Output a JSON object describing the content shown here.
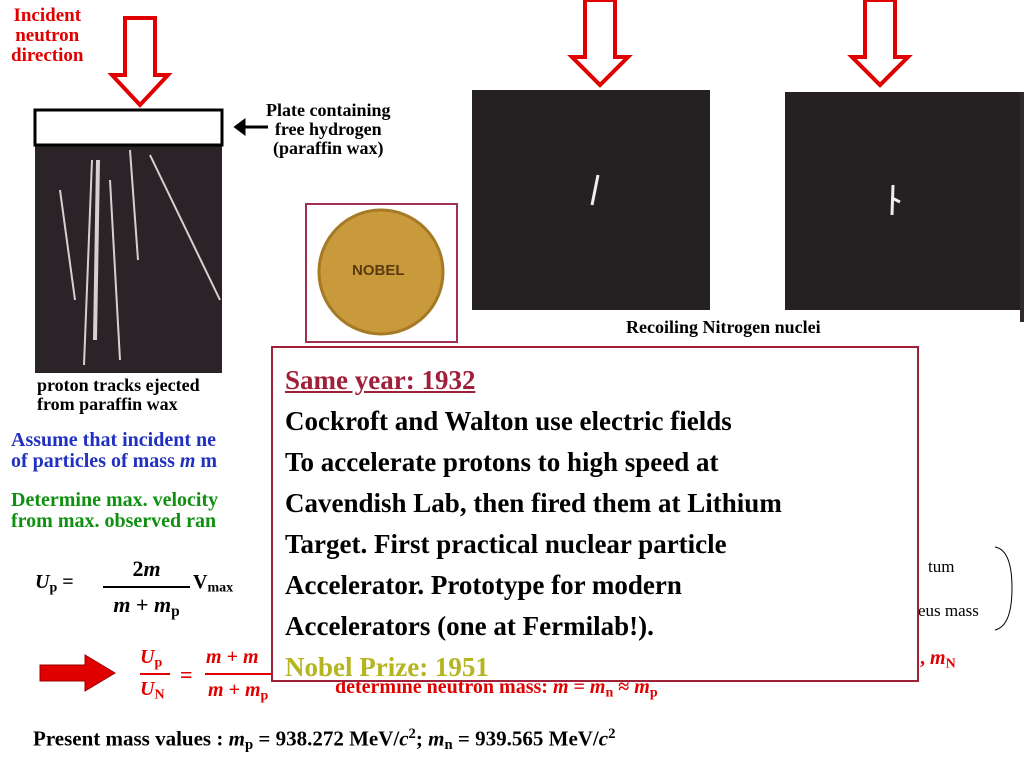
{
  "incident_label": [
    "Incident",
    "neutron",
    "direction"
  ],
  "plate_label": [
    "Plate containing",
    "free hydrogen",
    "(paraffin wax)"
  ],
  "proton_tracks_label": [
    "proton tracks ejected",
    "from paraffin wax"
  ],
  "recoil_label": "Recoiling Nitrogen nuclei",
  "medal_text": "NOBEL",
  "assume_line_1": "Assume that incident ne",
  "assume_line_2": [
    "of particles of mass ",
    "m",
    " m"
  ],
  "determine_lines": [
    "Determine max. velocity",
    "from max. observed ran"
  ],
  "formula_1": {
    "lhs": [
      "U",
      "p",
      " ="
    ],
    "numerator": [
      "2",
      "m"
    ],
    "denominator": [
      "m",
      " + ",
      "m",
      "p"
    ],
    "rhs": [
      "V",
      "max"
    ]
  },
  "right_fragments": [
    "tum",
    "eus mass"
  ],
  "formula_2": {
    "lhs_num": [
      "U",
      "p"
    ],
    "lhs_den": [
      "U",
      "N"
    ],
    "eq": "=",
    "rhs_num": "m + m",
    "rhs_den": [
      "m + m",
      "p"
    ],
    "tail": [
      ", ",
      "m",
      "N"
    ],
    "note": [
      "determine neutron mass:  ",
      "m",
      " = ",
      "m",
      "n",
      " ≈  ",
      "m",
      "p"
    ]
  },
  "present_mass": [
    "Present mass values : ",
    "m",
    "p",
    " = 938.272 MeV/",
    "c",
    "2",
    "; ",
    "m",
    "n",
    " = 939.565 MeV/",
    "c",
    "2"
  ],
  "overlay": {
    "heading": "Same year: 1932",
    "lines": [
      "Cockroft and Walton use electric fields",
      "To accelerate protons to high speed at",
      "Cavendish Lab, then fired them at Lithium",
      "Target.  First practical nuclear particle",
      "Accelerator.  Prototype for modern",
      "Accelerators (one at Fermilab!)."
    ],
    "footer": "Nobel Prize: 1951"
  }
}
